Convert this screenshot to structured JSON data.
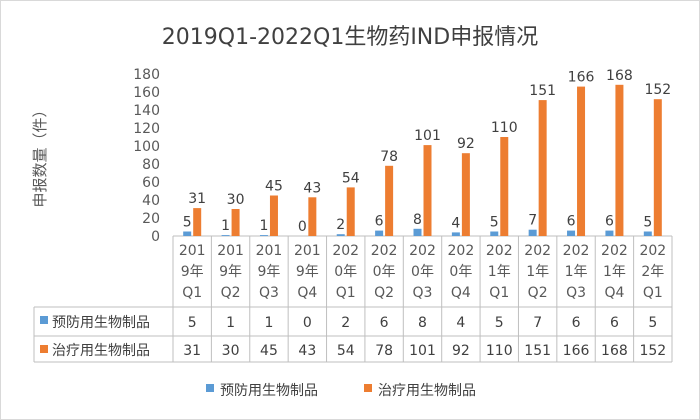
{
  "chart_data": {
    "type": "bar",
    "title": "2019Q1-2022Q1生物药IND申报情况",
    "ylabel": "申报数量（件）",
    "xlabel": "",
    "ylim": [
      0,
      180
    ],
    "yticks": [
      0,
      20,
      40,
      60,
      80,
      100,
      120,
      140,
      160,
      180
    ],
    "categories": [
      [
        "201",
        "9年",
        "Q1"
      ],
      [
        "201",
        "9年",
        "Q2"
      ],
      [
        "201",
        "9年",
        "Q3"
      ],
      [
        "201",
        "9年",
        "Q4"
      ],
      [
        "202",
        "0年",
        "Q1"
      ],
      [
        "202",
        "0年",
        "Q2"
      ],
      [
        "202",
        "0年",
        "Q3"
      ],
      [
        "202",
        "0年",
        "Q4"
      ],
      [
        "202",
        "1年",
        "Q1"
      ],
      [
        "202",
        "1年",
        "Q2"
      ],
      [
        "202",
        "1年",
        "Q3"
      ],
      [
        "202",
        "1年",
        "Q4"
      ],
      [
        "202",
        "2年",
        "Q1"
      ]
    ],
    "series": [
      {
        "name": "预防用生物制品",
        "color": "#5b9bd5",
        "values": [
          5,
          1,
          1,
          0,
          2,
          6,
          8,
          4,
          5,
          7,
          6,
          6,
          5
        ]
      },
      {
        "name": "治疗用生物制品",
        "color": "#ed7d31",
        "values": [
          31,
          30,
          45,
          43,
          54,
          78,
          101,
          92,
          110,
          151,
          166,
          168,
          152
        ]
      }
    ],
    "legend_position": "bottom",
    "data_table": true,
    "gridlines": false
  }
}
